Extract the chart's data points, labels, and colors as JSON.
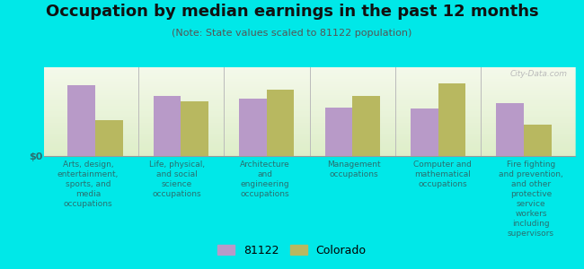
{
  "title": "Occupation by median earnings in the past 12 months",
  "subtitle": "(Note: State values scaled to 81122 population)",
  "background_color": "#00e8e8",
  "plot_bg_color": "#eef4e0",
  "categories": [
    "Arts, design,\nentertainment,\nsports, and\nmedia\noccupations",
    "Life, physical,\nand social\nscience\noccupations",
    "Architecture\nand\nengineering\noccupations",
    "Management\noccupations",
    "Computer and\nmathematical\noccupations",
    "Fire fighting\nand prevention,\nand other\nprotective\nservice\nworkers\nincluding\nsupervisors"
  ],
  "values_81122": [
    0.8,
    0.68,
    0.65,
    0.55,
    0.54,
    0.6
  ],
  "values_colorado": [
    0.4,
    0.62,
    0.75,
    0.68,
    0.82,
    0.35
  ],
  "color_81122": "#b89ac8",
  "color_colorado": "#b8b860",
  "ylabel": "$0",
  "bar_width": 0.32,
  "legend_label_81122": "81122",
  "legend_label_colorado": "Colorado",
  "watermark": "City-Data.com",
  "title_fontsize": 13,
  "subtitle_fontsize": 8,
  "label_fontsize": 6.5,
  "legend_fontsize": 9
}
